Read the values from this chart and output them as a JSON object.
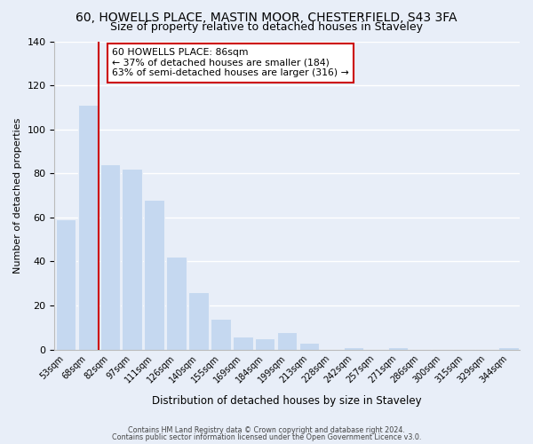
{
  "title": "60, HOWELLS PLACE, MASTIN MOOR, CHESTERFIELD, S43 3FA",
  "subtitle": "Size of property relative to detached houses in Staveley",
  "xlabel": "Distribution of detached houses by size in Staveley",
  "ylabel": "Number of detached properties",
  "bar_labels": [
    "53sqm",
    "68sqm",
    "82sqm",
    "97sqm",
    "111sqm",
    "126sqm",
    "140sqm",
    "155sqm",
    "169sqm",
    "184sqm",
    "199sqm",
    "213sqm",
    "228sqm",
    "242sqm",
    "257sqm",
    "271sqm",
    "286sqm",
    "300sqm",
    "315sqm",
    "329sqm",
    "344sqm"
  ],
  "bar_values": [
    59,
    111,
    84,
    82,
    68,
    42,
    26,
    14,
    6,
    5,
    8,
    3,
    0,
    1,
    0,
    1,
    0,
    0,
    0,
    0,
    1
  ],
  "bar_color": "#c5d8f0",
  "vline_color": "#cc0000",
  "vline_x_index": 2,
  "ylim": [
    0,
    140
  ],
  "yticks": [
    0,
    20,
    40,
    60,
    80,
    100,
    120,
    140
  ],
  "annotation_line1": "60 HOWELLS PLACE: 86sqm",
  "annotation_line2": "← 37% of detached houses are smaller (184)",
  "annotation_line3": "63% of semi-detached houses are larger (316) →",
  "annotation_box_facecolor": "#ffffff",
  "annotation_box_edgecolor": "#cc0000",
  "footer1": "Contains HM Land Registry data © Crown copyright and database right 2024.",
  "footer2": "Contains public sector information licensed under the Open Government Licence v3.0.",
  "background_color": "#e8eef8",
  "plot_bg_color": "#e8eef8",
  "grid_color": "#ffffff",
  "title_fontsize": 10,
  "subtitle_fontsize": 9
}
